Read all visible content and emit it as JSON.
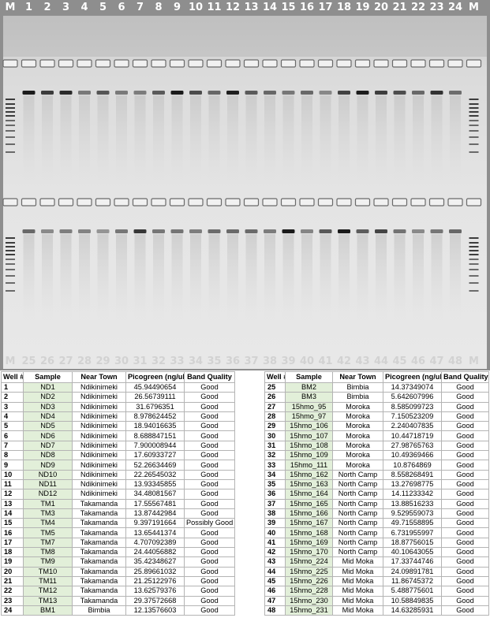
{
  "gel": {
    "lanes_top": [
      "M",
      "1",
      "2",
      "3",
      "4",
      "5",
      "6",
      "7",
      "8",
      "9",
      "10",
      "11",
      "12",
      "13",
      "14",
      "15",
      "16",
      "17",
      "18",
      "19",
      "20",
      "21",
      "22",
      "23",
      "24",
      "M"
    ],
    "lanes_bottom": [
      "M",
      "25",
      "26",
      "27",
      "28",
      "29",
      "30",
      "31",
      "32",
      "33",
      "34",
      "35",
      "36",
      "37",
      "38",
      "39",
      "40",
      "41",
      "42",
      "43",
      "44",
      "45",
      "46",
      "47",
      "48",
      "M"
    ]
  },
  "table": {
    "headers": [
      "Well #",
      "Sample",
      "Near Town",
      "Picogreen (ng/ul)",
      "Band Quality"
    ],
    "left_rows": [
      [
        "1",
        "ND1",
        "Ndikinimeki",
        "45.94490654",
        "Good"
      ],
      [
        "2",
        "ND2",
        "Ndikinimeki",
        "26.56739111",
        "Good"
      ],
      [
        "3",
        "ND3",
        "Ndikinimeki",
        "31.6796351",
        "Good"
      ],
      [
        "4",
        "ND4",
        "Ndikinimeki",
        "8.978624452",
        "Good"
      ],
      [
        "5",
        "ND5",
        "Ndikinimeki",
        "18.94016635",
        "Good"
      ],
      [
        "6",
        "ND6",
        "Ndikinimeki",
        "8.688847151",
        "Good"
      ],
      [
        "7",
        "ND7",
        "Ndikinimeki",
        "7.900008944",
        "Good"
      ],
      [
        "8",
        "ND8",
        "Ndikinimeki",
        "17.60933727",
        "Good"
      ],
      [
        "9",
        "ND9",
        "Ndikinimeki",
        "52.26634469",
        "Good"
      ],
      [
        "10",
        "ND10",
        "Ndikinimeki",
        "22.26545032",
        "Good"
      ],
      [
        "11",
        "ND11",
        "Ndikinimeki",
        "13.93345855",
        "Good"
      ],
      [
        "12",
        "ND12",
        "Ndikinimeki",
        "34.48081567",
        "Good"
      ],
      [
        "13",
        "TM1",
        "Takamanda",
        "17.55567481",
        "Good"
      ],
      [
        "14",
        "TM3",
        "Takamanda",
        "13.87442984",
        "Good"
      ],
      [
        "15",
        "TM4",
        "Takamanda",
        "9.397191664",
        "Possibly Good"
      ],
      [
        "16",
        "TM5",
        "Takamanda",
        "13.65441374",
        "Good"
      ],
      [
        "17",
        "TM7",
        "Takamanda",
        "4.707092389",
        "Good"
      ],
      [
        "18",
        "TM8",
        "Takamanda",
        "24.44056882",
        "Good"
      ],
      [
        "19",
        "TM9",
        "Takamanda",
        "35.42348627",
        "Good"
      ],
      [
        "20",
        "TM10",
        "Takamanda",
        "25.89661032",
        "Good"
      ],
      [
        "21",
        "TM11",
        "Takamanda",
        "21.25122976",
        "Good"
      ],
      [
        "22",
        "TM12",
        "Takamanda",
        "13.62579376",
        "Good"
      ],
      [
        "23",
        "TM13",
        "Takamanda",
        "29.37572668",
        "Good"
      ],
      [
        "24",
        "BM1",
        "Bimbia",
        "12.13576603",
        "Good"
      ]
    ],
    "right_rows": [
      [
        "25",
        "BM2",
        "Bimbia",
        "14.37349074",
        "Good"
      ],
      [
        "26",
        "BM3",
        "Bimbia",
        "5.642607996",
        "Good"
      ],
      [
        "27",
        "15hmo_95",
        "Moroka",
        "8.585099723",
        "Good"
      ],
      [
        "28",
        "15hmo_97",
        "Moroka",
        "7.150523209",
        "Good"
      ],
      [
        "29",
        "15hmo_106",
        "Moroka",
        "2.240407835",
        "Good"
      ],
      [
        "30",
        "15hmo_107",
        "Moroka",
        "10.44718719",
        "Good"
      ],
      [
        "31",
        "15hmo_108",
        "Moroka",
        "27.98765763",
        "Good"
      ],
      [
        "32",
        "15hmo_109",
        "Moroka",
        "10.49369466",
        "Good"
      ],
      [
        "33",
        "15hmo_111",
        "Moroka",
        "10.8764869",
        "Good"
      ],
      [
        "34",
        "15hmo_162",
        "North Camp",
        "8.558268491",
        "Good"
      ],
      [
        "35",
        "15hmo_163",
        "North Camp",
        "13.27698775",
        "Good"
      ],
      [
        "36",
        "15hmo_164",
        "North Camp",
        "14.11233342",
        "Good"
      ],
      [
        "37",
        "15hmo_165",
        "North Camp",
        "13.88516233",
        "Good"
      ],
      [
        "38",
        "15hmo_166",
        "North Camp",
        "9.529559073",
        "Good"
      ],
      [
        "39",
        "15hmo_167",
        "North Camp",
        "49.71558895",
        "Good"
      ],
      [
        "40",
        "15hmo_168",
        "North Camp",
        "6.731955997",
        "Good"
      ],
      [
        "41",
        "15hmo_169",
        "North Camp",
        "18.87756015",
        "Good"
      ],
      [
        "42",
        "15hmo_170",
        "North Camp",
        "40.10643055",
        "Good"
      ],
      [
        "43",
        "15hmo_224",
        "Mid Moka",
        "17.33744746",
        "Good"
      ],
      [
        "44",
        "15hmo_225",
        "Mid Moka",
        "24.09891781",
        "Good"
      ],
      [
        "45",
        "15hmo_226",
        "Mid Moka",
        "11.86745372",
        "Good"
      ],
      [
        "46",
        "15hmo_228",
        "Mid Moka",
        "5.488775601",
        "Good"
      ],
      [
        "47",
        "15hmo_230",
        "Mid Moka",
        "10.58849835",
        "Good"
      ],
      [
        "48",
        "15hmo_231",
        "Mid Moka",
        "14.63285931",
        "Good"
      ]
    ]
  }
}
